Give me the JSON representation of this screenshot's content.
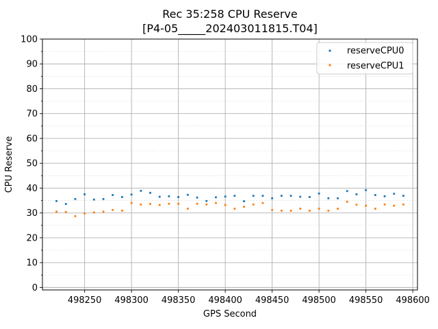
{
  "chart_data": {
    "type": "scatter",
    "title": "Rec 35:258 CPU Reserve",
    "subtitle": "[P4-05_____202403011815.T04]",
    "xlabel": "GPS Second",
    "ylabel": "CPU Reserve",
    "xlim": [
      498205,
      498605
    ],
    "ylim": [
      -1,
      100
    ],
    "xticks": [
      498250,
      498300,
      498350,
      498400,
      498450,
      498500,
      498550,
      498600
    ],
    "yticks": [
      0,
      10,
      20,
      30,
      40,
      50,
      60,
      70,
      80,
      90,
      100
    ],
    "legend_position": "top-right",
    "series": [
      {
        "name": "reserveCPU0",
        "color": "#1f77b4",
        "x": [
          498220,
          498230,
          498240,
          498250,
          498260,
          498270,
          498280,
          498290,
          498300,
          498310,
          498320,
          498330,
          498340,
          498350,
          498360,
          498370,
          498380,
          498390,
          498400,
          498410,
          498420,
          498430,
          498440,
          498450,
          498460,
          498470,
          498480,
          498490,
          498500,
          498510,
          498520,
          498530,
          498540,
          498550,
          498560,
          498570,
          498580,
          498590
        ],
        "y": [
          34.8,
          33.6,
          35.6,
          37.5,
          35.4,
          35.6,
          37.2,
          36.4,
          37.4,
          38.9,
          38.1,
          36.5,
          36.7,
          36.4,
          37.3,
          36.2,
          34.8,
          36.3,
          36.6,
          36.9,
          34.7,
          36.9,
          36.9,
          35.9,
          36.9,
          36.9,
          36.5,
          36.4,
          37.8,
          35.9,
          35.9,
          38.8,
          37.5,
          39.2,
          37.2,
          36.7,
          37.7,
          36.9
        ]
      },
      {
        "name": "reserveCPU1",
        "color": "#ff7f0e",
        "x": [
          498220,
          498230,
          498240,
          498250,
          498260,
          498270,
          498280,
          498290,
          498300,
          498310,
          498320,
          498330,
          498340,
          498350,
          498360,
          498370,
          498380,
          498390,
          498400,
          498410,
          498420,
          498430,
          498440,
          498450,
          498460,
          498470,
          498480,
          498490,
          498500,
          498510,
          498520,
          498530,
          498540,
          498550,
          498560,
          498570,
          498580,
          498590
        ],
        "y": [
          30.5,
          30.4,
          28.7,
          29.8,
          30.2,
          30.5,
          31.2,
          30.9,
          34.0,
          33.4,
          33.6,
          33.2,
          33.7,
          33.7,
          31.7,
          33.7,
          33.4,
          34.0,
          33.2,
          31.7,
          32.5,
          33.4,
          34.0,
          31.2,
          30.9,
          30.9,
          31.7,
          30.9,
          31.7,
          30.9,
          31.7,
          34.5,
          33.3,
          32.9,
          31.7,
          33.4,
          32.9,
          33.4
        ]
      }
    ]
  }
}
